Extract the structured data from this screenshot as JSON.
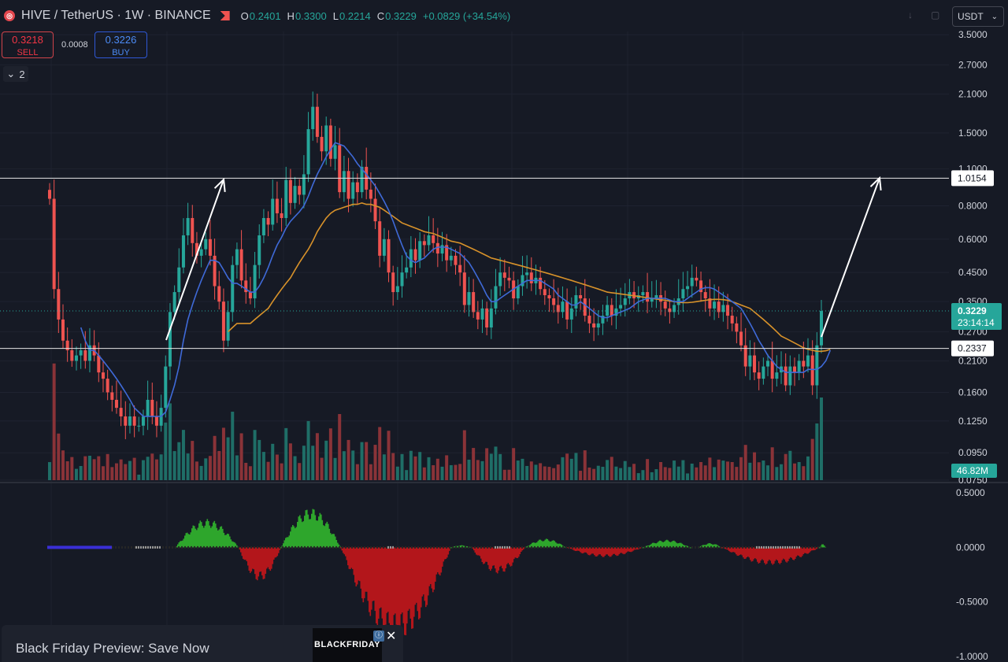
{
  "header": {
    "symbol": "HIVE / TetherUS · 1W · BINANCE",
    "logo_glyph": "◎",
    "ohlc": [
      {
        "k": "O",
        "v": "0.2401"
      },
      {
        "k": "H",
        "v": "0.3300"
      },
      {
        "k": "L",
        "v": "0.2214"
      },
      {
        "k": "C",
        "v": "0.3229"
      }
    ],
    "change": "+0.0829 (+34.54%)"
  },
  "trade": {
    "sell_price": "0.3218",
    "sell_label": "SELL",
    "spread": "0.0008",
    "buy_price": "0.3226",
    "buy_label": "BUY"
  },
  "collapse_label": "2",
  "collapse_glyph": "⌄",
  "currency": "USDT",
  "icons": {
    "arrow": "↓",
    "box": "▢",
    "chevron": "⌄"
  },
  "ad": {
    "text": "Black Friday Preview: Save Now",
    "image_text": "BLACKFRIDAY",
    "info_glyph": "ⓘ",
    "close_glyph": "✕"
  },
  "colors": {
    "bg": "#161a25",
    "up": "#26a69a",
    "down": "#ef5350",
    "ma_fast": "#3f6ad8",
    "ma_slow": "#d8922a",
    "vol_up": "#1f6e67",
    "vol_down": "#8a3338",
    "osc_green": "#2ea62c",
    "osc_red": "#b3161b",
    "price_label": "#26a69a",
    "line_label_bg": "#ffffff"
  },
  "chart_data": [
    {
      "type": "candlestick",
      "scale": "log",
      "ylim": [
        0.075,
        3.6
      ],
      "yticks": [
        "3.5000",
        "2.7000",
        "2.1000",
        "1.5000",
        "1.1000",
        "0.8000",
        "0.6000",
        "0.4500",
        "0.3500",
        "0.2700",
        "0.2100",
        "0.1600",
        "0.1250",
        "0.0950",
        "0.0750"
      ],
      "last_price": "0.3229",
      "countdown": "23:14:14",
      "volume_label": "46.82M",
      "horizontal_lines": [
        {
          "value": 1.0154,
          "label": "1.0154"
        },
        {
          "value": 0.2337,
          "label": "0.2337"
        }
      ],
      "close": [
        0.85,
        0.39,
        0.3,
        0.25,
        0.23,
        0.21,
        0.22,
        0.23,
        0.21,
        0.24,
        0.22,
        0.19,
        0.18,
        0.16,
        0.15,
        0.14,
        0.13,
        0.12,
        0.13,
        0.12,
        0.12,
        0.13,
        0.15,
        0.13,
        0.12,
        0.14,
        0.2,
        0.32,
        0.38,
        0.47,
        0.62,
        0.72,
        0.58,
        0.52,
        0.55,
        0.6,
        0.52,
        0.4,
        0.35,
        0.25,
        0.32,
        0.48,
        0.55,
        0.42,
        0.38,
        0.36,
        0.48,
        0.62,
        0.72,
        0.68,
        0.85,
        0.75,
        0.72,
        1.0,
        0.82,
        0.95,
        0.88,
        1.05,
        1.55,
        1.88,
        1.45,
        1.28,
        1.6,
        1.2,
        1.35,
        0.9,
        1.08,
        0.85,
        0.98,
        0.9,
        1.12,
        0.92,
        0.85,
        0.7,
        0.52,
        0.6,
        0.45,
        0.38,
        0.4,
        0.45,
        0.47,
        0.55,
        0.5,
        0.59,
        0.57,
        0.62,
        0.58,
        0.53,
        0.57,
        0.5,
        0.52,
        0.48,
        0.45,
        0.34,
        0.38,
        0.32,
        0.3,
        0.33,
        0.28,
        0.33,
        0.4,
        0.45,
        0.43,
        0.42,
        0.36,
        0.4,
        0.44,
        0.45,
        0.41,
        0.43,
        0.39,
        0.37,
        0.36,
        0.34,
        0.32,
        0.35,
        0.3,
        0.33,
        0.37,
        0.36,
        0.31,
        0.29,
        0.28,
        0.29,
        0.31,
        0.34,
        0.31,
        0.33,
        0.34,
        0.36,
        0.38,
        0.36,
        0.37,
        0.38,
        0.35,
        0.36,
        0.37,
        0.35,
        0.33,
        0.32,
        0.34,
        0.36,
        0.39,
        0.4,
        0.43,
        0.42,
        0.38,
        0.36,
        0.33,
        0.35,
        0.32,
        0.34,
        0.31,
        0.29,
        0.27,
        0.24,
        0.2,
        0.22,
        0.19,
        0.18,
        0.2,
        0.21,
        0.18,
        0.19,
        0.2,
        0.17,
        0.2,
        0.19,
        0.21,
        0.2,
        0.22,
        0.17,
        0.24,
        0.3229
      ],
      "ma_fast": [
        null,
        null,
        null,
        null,
        null,
        null,
        null,
        0.28,
        0.25,
        0.23,
        0.23,
        0.22,
        0.21,
        0.2,
        0.19,
        0.18,
        0.17,
        0.16,
        0.15,
        0.14,
        0.135,
        0.13,
        0.13,
        0.13,
        0.13,
        0.13,
        0.135,
        0.15,
        0.17,
        0.2,
        0.25,
        0.3,
        0.34,
        0.38,
        0.42,
        0.46,
        0.5,
        0.5,
        0.49,
        0.46,
        0.43,
        0.41,
        0.41,
        0.4,
        0.39,
        0.38,
        0.38,
        0.4,
        0.43,
        0.47,
        0.52,
        0.57,
        0.61,
        0.66,
        0.7,
        0.73,
        0.76,
        0.8,
        0.87,
        0.96,
        1.05,
        1.13,
        1.22,
        1.3,
        1.38,
        1.36,
        1.34,
        1.28,
        1.22,
        1.15,
        1.1,
        1.05,
        1.0,
        0.95,
        0.89,
        0.83,
        0.77,
        0.7,
        0.63,
        0.57,
        0.52,
        0.5,
        0.49,
        0.5,
        0.51,
        0.53,
        0.55,
        0.56,
        0.56,
        0.56,
        0.55,
        0.54,
        0.53,
        0.51,
        0.49,
        0.46,
        0.43,
        0.4,
        0.37,
        0.35,
        0.35,
        0.36,
        0.37,
        0.38,
        0.39,
        0.4,
        0.41,
        0.42,
        0.42,
        0.42,
        0.42,
        0.41,
        0.4,
        0.39,
        0.37,
        0.36,
        0.35,
        0.34,
        0.34,
        0.35,
        0.34,
        0.33,
        0.32,
        0.31,
        0.305,
        0.305,
        0.31,
        0.315,
        0.32,
        0.325,
        0.33,
        0.34,
        0.35,
        0.355,
        0.36,
        0.36,
        0.36,
        0.36,
        0.36,
        0.355,
        0.35,
        0.35,
        0.35,
        0.36,
        0.37,
        0.38,
        0.39,
        0.395,
        0.395,
        0.39,
        0.38,
        0.37,
        0.36,
        0.35,
        0.34,
        0.33,
        0.31,
        0.29,
        0.27,
        0.25,
        0.235,
        0.22,
        0.21,
        0.2,
        0.195,
        0.19,
        0.19,
        0.19,
        0.19,
        0.19,
        0.195,
        0.195,
        0.195,
        0.2,
        0.21,
        0.23
      ],
      "ma_slow": [
        null,
        null,
        null,
        null,
        null,
        null,
        null,
        null,
        null,
        null,
        null,
        null,
        null,
        null,
        null,
        null,
        null,
        null,
        null,
        null,
        null,
        null,
        null,
        null,
        null,
        null,
        null,
        null,
        null,
        null,
        null,
        null,
        null,
        null,
        null,
        null,
        null,
        null,
        null,
        null,
        0.27,
        0.28,
        0.29,
        0.29,
        0.29,
        0.29,
        0.3,
        0.31,
        0.32,
        0.33,
        0.35,
        0.37,
        0.39,
        0.41,
        0.43,
        0.46,
        0.49,
        0.52,
        0.55,
        0.59,
        0.64,
        0.68,
        0.72,
        0.75,
        0.77,
        0.78,
        0.79,
        0.8,
        0.81,
        0.81,
        0.82,
        0.81,
        0.81,
        0.8,
        0.79,
        0.77,
        0.75,
        0.73,
        0.71,
        0.69,
        0.68,
        0.67,
        0.66,
        0.65,
        0.64,
        0.635,
        0.63,
        0.62,
        0.61,
        0.6,
        0.59,
        0.585,
        0.58,
        0.57,
        0.56,
        0.55,
        0.54,
        0.53,
        0.52,
        0.51,
        0.505,
        0.5,
        0.495,
        0.49,
        0.485,
        0.48,
        0.475,
        0.47,
        0.465,
        0.46,
        0.455,
        0.45,
        0.445,
        0.44,
        0.435,
        0.43,
        0.425,
        0.42,
        0.415,
        0.41,
        0.405,
        0.4,
        0.395,
        0.39,
        0.385,
        0.38,
        0.378,
        0.376,
        0.374,
        0.372,
        0.37,
        0.368,
        0.366,
        0.364,
        0.362,
        0.36,
        0.358,
        0.356,
        0.354,
        0.352,
        0.35,
        0.348,
        0.347,
        0.347,
        0.348,
        0.35,
        0.352,
        0.354,
        0.356,
        0.357,
        0.357,
        0.356,
        0.354,
        0.35,
        0.345,
        0.34,
        0.335,
        0.33,
        0.32,
        0.31,
        0.3,
        0.29,
        0.28,
        0.27,
        0.26,
        0.255,
        0.25,
        0.245,
        0.24,
        0.235,
        0.232,
        0.23,
        0.228,
        0.228,
        0.229,
        0.232
      ]
    },
    {
      "type": "bar",
      "name": "oscillator",
      "ylim": [
        -1.05,
        0.58
      ],
      "yticks": [
        "0.5000",
        "0.0000",
        "-0.5000",
        "-1.0000"
      ]
    }
  ]
}
